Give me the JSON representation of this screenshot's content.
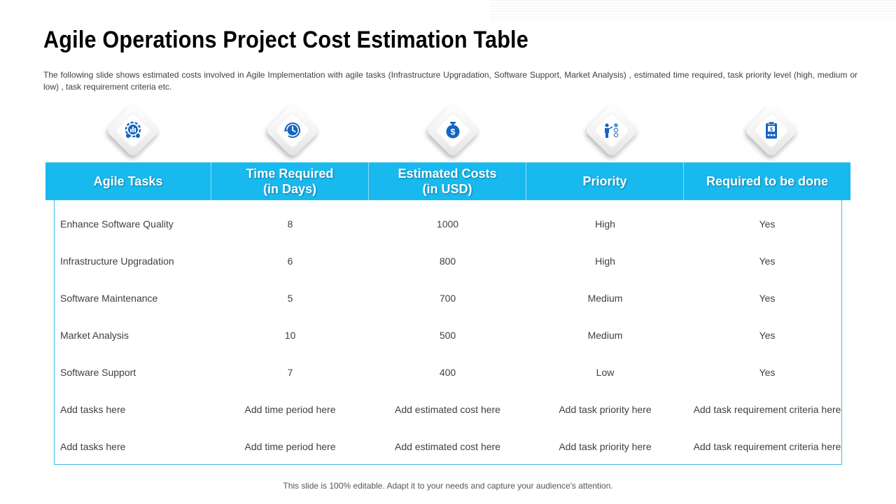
{
  "slide": {
    "title": "Agile Operations Project Cost Estimation Table",
    "subtitle": "The following slide shows estimated costs involved in Agile Implementation with agile tasks (Infrastructure Upgradation, Software Support, Market Analysis) , estimated time required, task priority level (high, medium or low) , task requirement criteria etc.",
    "footer": "This slide is 100% editable. Adapt it to your needs and capture your audience's attention."
  },
  "icons": [
    "analytics-gear-icon",
    "clock-cycle-icon",
    "money-bag-icon",
    "presenter-checklist-icon",
    "clipboard-dollar-icon"
  ],
  "colors": {
    "header_bg": "#18b9ef",
    "accent": "#1565c0",
    "table_border": "#3fb9e4"
  },
  "table": {
    "headers": [
      "Agile Tasks",
      "Time Required\n(in Days)",
      "Estimated Costs\n(in USD)",
      "Priority",
      "Required to be done"
    ],
    "rows": [
      [
        "Enhance Software Quality",
        "8",
        "1000",
        "High",
        "Yes"
      ],
      [
        "Infrastructure Upgradation",
        "6",
        "800",
        "High",
        "Yes"
      ],
      [
        "Software Maintenance",
        "5",
        "700",
        "Medium",
        "Yes"
      ],
      [
        "Market Analysis",
        "10",
        "500",
        "Medium",
        "Yes"
      ],
      [
        "Software Support",
        "7",
        "400",
        "Low",
        "Yes"
      ],
      [
        "Add tasks here",
        "Add time period here",
        "Add estimated cost here",
        "Add task priority here",
        "Add task requirement criteria here"
      ],
      [
        "Add tasks here",
        "Add time period here",
        "Add estimated cost here",
        "Add task priority here",
        "Add task requirement criteria here"
      ]
    ]
  }
}
